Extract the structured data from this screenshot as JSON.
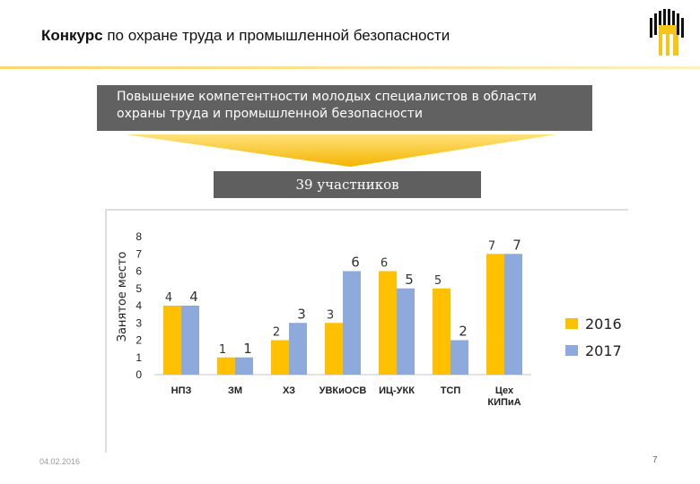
{
  "header": {
    "title_bold": "Конкурс",
    "title_rest": " по охране труда и промышленной безопасности"
  },
  "banner": {
    "text": "Повышение компетентности молодых специалистов в области охраны труда и промышленной безопасности"
  },
  "participants": {
    "text": "39 участников"
  },
  "colors": {
    "y2016": "#FFC000",
    "y2017": "#8EA9DB",
    "banner_bg": "#616161",
    "arrow": "#FFC000"
  },
  "chart_data": {
    "type": "bar",
    "categories": [
      "НПЗ",
      "ЗМ",
      "ХЗ",
      "УВКиОСВ",
      "ИЦ-УКК",
      "ТСП",
      "Цех КИПиА"
    ],
    "series": [
      {
        "name": "2016",
        "values": [
          4,
          1,
          2,
          3,
          6,
          5,
          7
        ]
      },
      {
        "name": "2017",
        "values": [
          4,
          1,
          3,
          6,
          5,
          2,
          7
        ]
      }
    ],
    "ylabel": "Занятое место",
    "ylim": [
      0,
      8
    ],
    "yticks": [
      "0",
      "1",
      "2",
      "3",
      "4",
      "5",
      "6",
      "7",
      "8"
    ],
    "legend_position": "right"
  },
  "footer": {
    "date": "04.02.2016",
    "page": "7"
  }
}
